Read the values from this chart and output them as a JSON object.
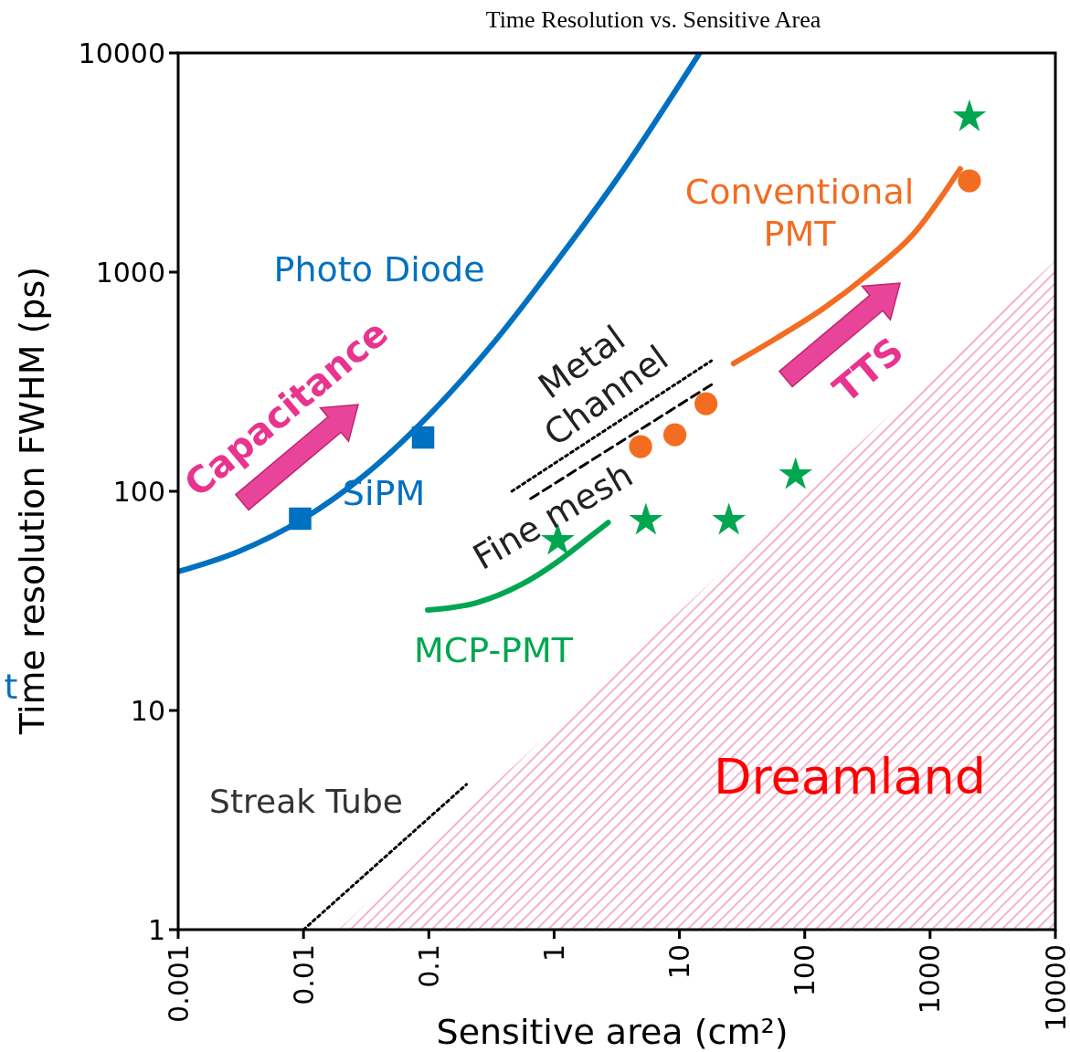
{
  "chart_data": {
    "type": "line",
    "title": "Time Resolution vs. Sensitive Area",
    "xlabel": "Sensitive area (cm²)",
    "ylabel": "Time resolution FWHM (ps)",
    "log": "xy",
    "grid": false,
    "xlim": [
      0.001,
      10000
    ],
    "xticks": [
      0.001,
      0.01,
      0.1,
      1,
      10,
      100,
      1000,
      10000
    ],
    "ylim": [
      1,
      10000
    ],
    "yticks": [
      1,
      10,
      100,
      1000,
      10000
    ],
    "series": [
      {
        "color": "#0070c0",
        "line_style": "solid",
        "x": [
          0.001,
          0.003,
          0.01,
          0.031,
          0.1,
          0.33,
          1,
          3.4,
          14.5
        ],
        "values": [
          43,
          53,
          75,
          119,
          222,
          477,
          1080,
          2820,
          10000
        ]
      },
      {
        "type": "scatter",
        "color": "#0070c0",
        "marker": "square",
        "x": [
          0.0094,
          0.09
        ],
        "values": [
          75,
          176
        ]
      },
      {
        "color": "#f26d21",
        "line_style": "solid",
        "x": [
          27,
          60,
          140,
          324,
          750,
          1740
        ],
        "values": [
          383,
          501,
          681,
          981,
          1510,
          2960
        ]
      },
      {
        "type": "scatter",
        "color": "#f26d21",
        "marker": "circle",
        "x": [
          4.9,
          9.2,
          16.3,
          2060
        ],
        "values": [
          160,
          181,
          251,
          2610
        ]
      },
      {
        "color": "#00a650",
        "line_style": "solid",
        "x": [
          0.098,
          0.24,
          0.55,
          1.07,
          1.77,
          2.7
        ],
        "values": [
          28.7,
          31,
          37.6,
          47.8,
          59.6,
          72
        ]
      },
      {
        "type": "scatter",
        "color": "#00a650",
        "marker": "star",
        "x": [
          1.07,
          5.4,
          24.8,
          84.5,
          2060
        ],
        "values": [
          59.6,
          73.6,
          73.6,
          119,
          5110
        ]
      },
      {
        "color": "#000000",
        "line_style": "dotted",
        "x": [
          0.46,
          18
        ],
        "values": [
          100,
          394
        ]
      },
      {
        "color": "#000000",
        "line_style": "dashed",
        "x": [
          0.65,
          18.6
        ],
        "values": [
          92.6,
          310
        ]
      },
      {
        "color": "#000000",
        "line_style": "dotted",
        "x": [
          0.01,
          0.2
        ],
        "values": [
          1,
          4.6
        ]
      },
      {
        "type": "area",
        "color": "#f4a7c8",
        "x": [
          0.019,
          10000
        ],
        "values": [
          1,
          1130
        ]
      }
    ],
    "annotations": [
      "Photo Diode",
      "SiPM",
      "Conventional\nPMT",
      "MCP-PMT",
      "Metal\nChannel",
      "Fine mesh",
      "Streak Tube",
      "Capacitance",
      "TTS",
      "Dreamland",
      "t"
    ]
  }
}
